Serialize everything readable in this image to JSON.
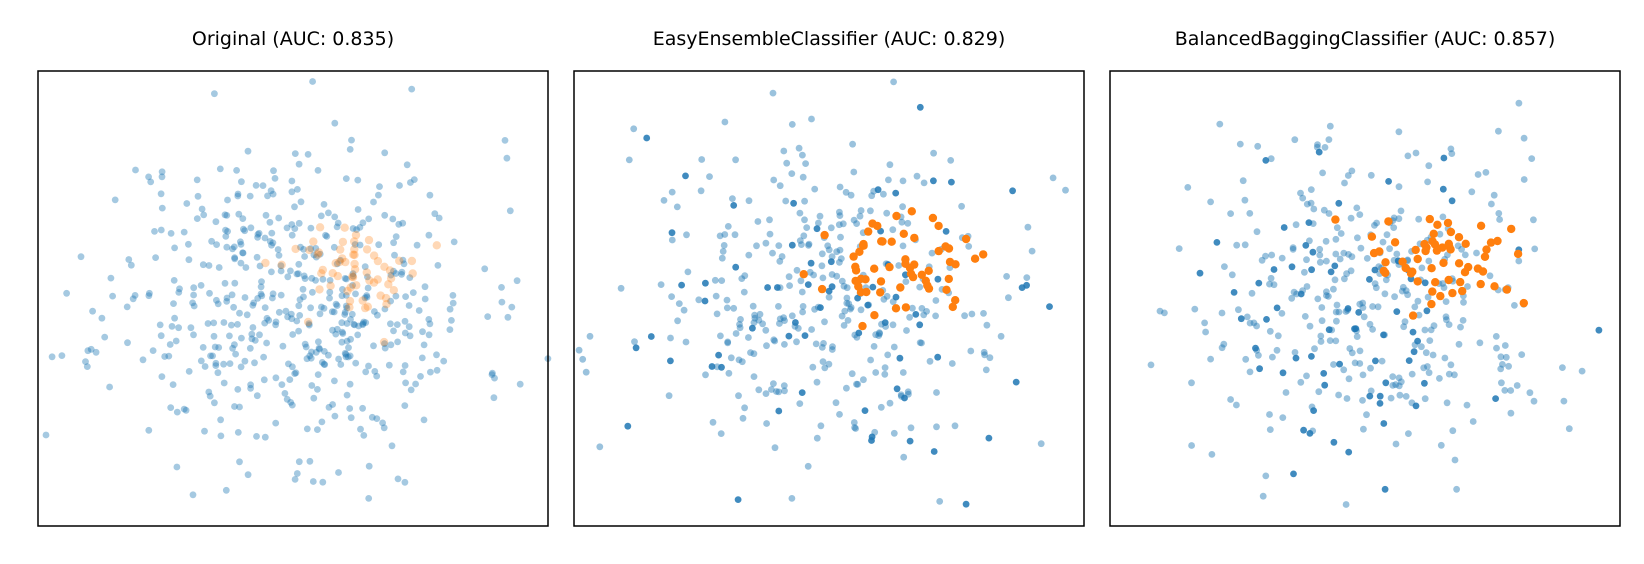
{
  "colors": {
    "class_majority": "#1f77b4",
    "class_minority": "#ff7f0e",
    "frame": "#000000",
    "background": "#ffffff"
  },
  "chart_data": [
    {
      "type": "scatter",
      "title": "Original (AUC: 0.835)",
      "grid": false,
      "axes_visible": false,
      "xlim": [
        -3.2,
        3.2
      ],
      "ylim": [
        -3.0,
        3.0
      ],
      "series": [
        {
          "role": "majority",
          "alpha": 0.4,
          "n": 520,
          "cluster": {
            "cx": 0.0,
            "cy": 0.0,
            "sx": 1.15,
            "sy": 1.05
          },
          "seed": 11
        },
        {
          "role": "minority",
          "alpha": 0.3,
          "n": 60,
          "cluster": {
            "cx": 0.85,
            "cy": 0.35,
            "sx": 0.45,
            "sy": 0.3
          },
          "seed": 12
        }
      ]
    },
    {
      "type": "scatter",
      "title": "EasyEnsembleClassifier (AUC: 0.829)",
      "grid": false,
      "axes_visible": false,
      "xlim": [
        -3.2,
        3.2
      ],
      "ylim": [
        -3.0,
        3.0
      ],
      "series": [
        {
          "role": "majority",
          "alpha": 0.45,
          "n": 330,
          "cluster": {
            "cx": 0.0,
            "cy": 0.0,
            "sx": 1.2,
            "sy": 1.05
          },
          "seed": 21
        },
        {
          "role": "majority-dark",
          "alpha": 0.85,
          "n": 70,
          "cluster": {
            "cx": -0.2,
            "cy": 0.0,
            "sx": 1.2,
            "sy": 1.0
          },
          "seed": 22
        },
        {
          "role": "minority",
          "alpha": 1.0,
          "n": 60,
          "cluster": {
            "cx": 0.9,
            "cy": 0.4,
            "sx": 0.45,
            "sy": 0.3
          },
          "seed": 23
        }
      ]
    },
    {
      "type": "scatter",
      "title": "BalancedBaggingClassifier (AUC: 0.857)",
      "grid": false,
      "axes_visible": false,
      "xlim": [
        -3.2,
        3.2
      ],
      "ylim": [
        -3.0,
        3.0
      ],
      "series": [
        {
          "role": "majority",
          "alpha": 0.45,
          "n": 330,
          "cluster": {
            "cx": 0.0,
            "cy": 0.0,
            "sx": 1.2,
            "sy": 1.05
          },
          "seed": 31
        },
        {
          "role": "majority-dark",
          "alpha": 0.85,
          "n": 70,
          "cluster": {
            "cx": -0.3,
            "cy": -0.1,
            "sx": 1.2,
            "sy": 1.0
          },
          "seed": 32
        },
        {
          "role": "minority",
          "alpha": 1.0,
          "n": 60,
          "cluster": {
            "cx": 0.95,
            "cy": 0.45,
            "sx": 0.45,
            "sy": 0.3
          },
          "seed": 33
        }
      ]
    }
  ]
}
